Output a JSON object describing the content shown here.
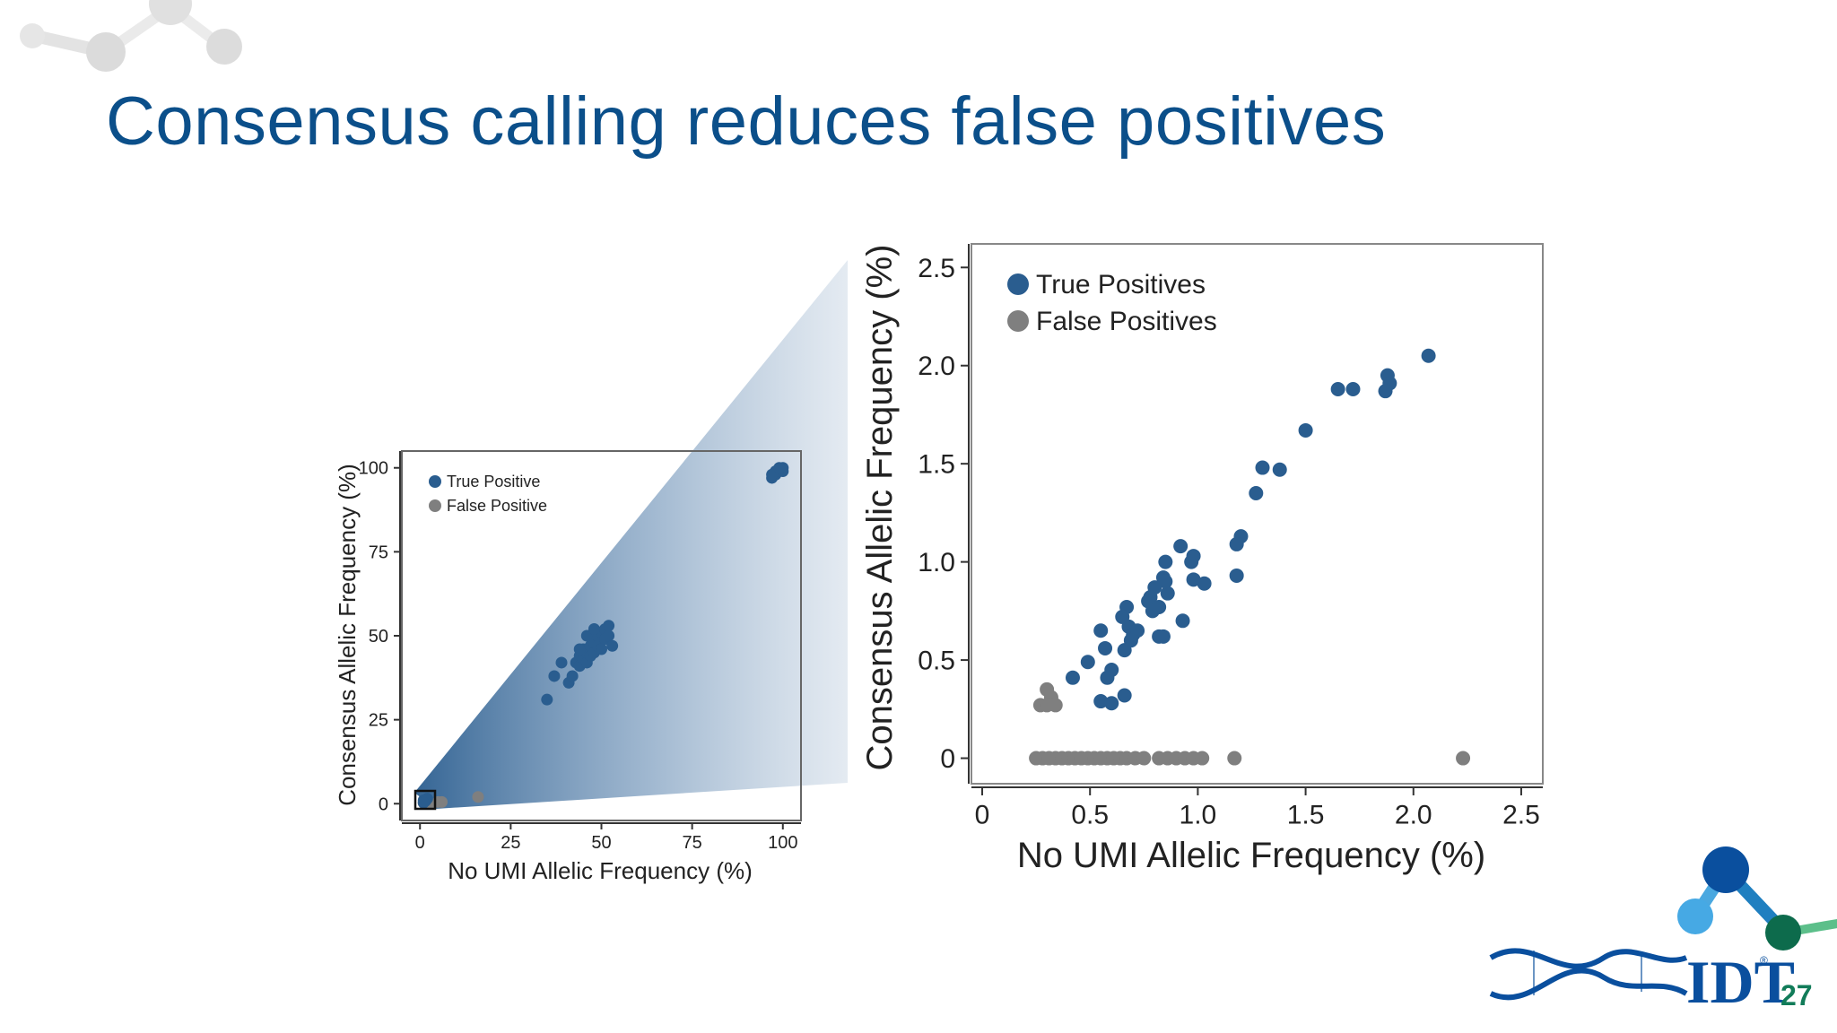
{
  "slide": {
    "title": "Consensus calling reduces false positives",
    "page_number": "27",
    "logo_text": "IDT",
    "logo_mark": "®"
  },
  "colors": {
    "title": "#0b4f8a",
    "true_positive": "#2a5d8f",
    "false_positive": "#7f7f7f",
    "page_number": "#127c59"
  },
  "chart_data": [
    {
      "type": "scatter",
      "id": "full-range",
      "xlabel": "No UMI Allelic Frequency (%)",
      "ylabel": "Consensus Allelic Frequency (%)",
      "xlim": [
        -5,
        105
      ],
      "ylim": [
        -5,
        105
      ],
      "xticks": [
        0,
        25,
        50,
        75,
        100
      ],
      "yticks": [
        0,
        25,
        50,
        75,
        100
      ],
      "legend": "top-left",
      "series": [
        {
          "name": "True Positive",
          "color": "#2a5d8f",
          "points": [
            [
              1,
              1
            ],
            [
              1.5,
              0.8
            ],
            [
              2,
              1.5
            ],
            [
              1,
              0.3
            ],
            [
              35,
              31
            ],
            [
              37,
              38
            ],
            [
              39,
              42
            ],
            [
              41,
              36
            ],
            [
              42,
              38
            ],
            [
              43,
              42
            ],
            [
              44,
              44
            ],
            [
              44,
              41
            ],
            [
              45,
              46
            ],
            [
              45,
              43
            ],
            [
              46,
              42
            ],
            [
              46,
              45
            ],
            [
              47,
              47
            ],
            [
              47,
              44
            ],
            [
              48,
              45
            ],
            [
              48,
              48
            ],
            [
              49,
              50
            ],
            [
              49,
              47
            ],
            [
              50,
              46
            ],
            [
              50,
              51
            ],
            [
              51,
              52
            ],
            [
              51,
              49
            ],
            [
              52,
              53
            ],
            [
              52,
              50
            ],
            [
              53,
              47
            ],
            [
              46,
              50
            ],
            [
              48,
              52
            ],
            [
              44,
              46
            ],
            [
              97,
              97
            ],
            [
              98,
              98
            ],
            [
              99,
              99
            ],
            [
              100,
              99
            ],
            [
              100,
              100
            ],
            [
              98,
              99
            ],
            [
              97,
              98
            ],
            [
              99,
              100
            ]
          ]
        },
        {
          "name": "False Positive",
          "color": "#7f7f7f",
          "points": [
            [
              1,
              0.2
            ],
            [
              2,
              0
            ],
            [
              3,
              0
            ],
            [
              5,
              0.5
            ],
            [
              6,
              0.5
            ],
            [
              16,
              2
            ]
          ]
        }
      ]
    },
    {
      "type": "scatter",
      "id": "zoomed-low-range",
      "xlabel": "No UMI Allelic Frequency (%)",
      "ylabel": "Consensus Allelic Frequency (%)",
      "xlim": [
        -0.05,
        2.6
      ],
      "ylim": [
        -0.13,
        2.62
      ],
      "xticks": [
        0,
        0.5,
        1.0,
        1.5,
        2.0,
        2.5
      ],
      "xtick_labels": [
        "0",
        "0.5",
        "1.0",
        "1.5",
        "2.0",
        "2.5"
      ],
      "yticks": [
        0,
        0.5,
        1.0,
        1.5,
        2.0,
        2.5
      ],
      "ytick_labels": [
        "0",
        "0.5",
        "1.0",
        "1.5",
        "2.0",
        "2.5"
      ],
      "legend": "top-left",
      "series": [
        {
          "name": "True Positives",
          "color": "#2a5d8f",
          "points": [
            [
              2.07,
              2.05
            ],
            [
              1.88,
              1.95
            ],
            [
              1.89,
              1.91
            ],
            [
              1.87,
              1.87
            ],
            [
              1.72,
              1.88
            ],
            [
              1.65,
              1.88
            ],
            [
              1.5,
              1.67
            ],
            [
              1.38,
              1.47
            ],
            [
              1.3,
              1.48
            ],
            [
              1.27,
              1.35
            ],
            [
              1.2,
              1.13
            ],
            [
              1.18,
              1.09
            ],
            [
              1.18,
              0.93
            ],
            [
              0.92,
              1.08
            ],
            [
              0.98,
              1.03
            ],
            [
              0.97,
              1.0
            ],
            [
              0.98,
              0.91
            ],
            [
              1.03,
              0.89
            ],
            [
              0.85,
              1.0
            ],
            [
              0.84,
              0.92
            ],
            [
              0.85,
              0.9
            ],
            [
              0.86,
              0.84
            ],
            [
              0.8,
              0.87
            ],
            [
              0.78,
              0.82
            ],
            [
              0.77,
              0.8
            ],
            [
              0.79,
              0.75
            ],
            [
              0.82,
              0.77
            ],
            [
              0.93,
              0.7
            ],
            [
              0.67,
              0.77
            ],
            [
              0.65,
              0.72
            ],
            [
              0.68,
              0.67
            ],
            [
              0.7,
              0.63
            ],
            [
              0.72,
              0.65
            ],
            [
              0.69,
              0.6
            ],
            [
              0.66,
              0.55
            ],
            [
              0.82,
              0.62
            ],
            [
              0.84,
              0.62
            ],
            [
              0.55,
              0.65
            ],
            [
              0.57,
              0.56
            ],
            [
              0.49,
              0.49
            ],
            [
              0.6,
              0.45
            ],
            [
              0.58,
              0.41
            ],
            [
              0.42,
              0.41
            ],
            [
              0.55,
              0.29
            ],
            [
              0.6,
              0.28
            ],
            [
              0.66,
              0.32
            ]
          ]
        },
        {
          "name": "False Positives",
          "color": "#7f7f7f",
          "points": [
            [
              0.3,
              0.35
            ],
            [
              0.32,
              0.31
            ],
            [
              0.27,
              0.27
            ],
            [
              0.3,
              0.27
            ],
            [
              0.34,
              0.27
            ],
            [
              0.25,
              0
            ],
            [
              0.28,
              0
            ],
            [
              0.31,
              0
            ],
            [
              0.34,
              0
            ],
            [
              0.37,
              0
            ],
            [
              0.4,
              0
            ],
            [
              0.43,
              0
            ],
            [
              0.46,
              0
            ],
            [
              0.49,
              0
            ],
            [
              0.52,
              0
            ],
            [
              0.55,
              0
            ],
            [
              0.58,
              0
            ],
            [
              0.61,
              0
            ],
            [
              0.64,
              0
            ],
            [
              0.67,
              0
            ],
            [
              0.71,
              0
            ],
            [
              0.75,
              0
            ],
            [
              0.82,
              0
            ],
            [
              0.86,
              0
            ],
            [
              0.9,
              0
            ],
            [
              0.94,
              0
            ],
            [
              0.98,
              0
            ],
            [
              1.02,
              0
            ],
            [
              1.17,
              0
            ],
            [
              2.23,
              0
            ]
          ]
        }
      ]
    }
  ]
}
